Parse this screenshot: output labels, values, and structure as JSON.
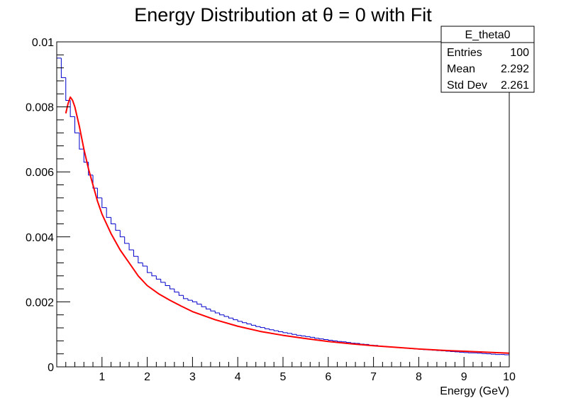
{
  "chart_data": {
    "type": "histogram",
    "title": "Energy Distribution at θ = 0 with Fit",
    "xlabel": "Energy (GeV)",
    "ylabel": "",
    "xlim": [
      0,
      10
    ],
    "ylim": [
      0,
      0.01
    ],
    "x_tick_labels": [
      "1",
      "2",
      "3",
      "4",
      "5",
      "6",
      "7",
      "8",
      "9",
      "10"
    ],
    "y_tick_labels": [
      "0",
      "0.002",
      "0.004",
      "0.006",
      "0.008",
      "0.01"
    ],
    "grid": false,
    "colors": {
      "histogram": "#0000cc",
      "fit": "#ff0000",
      "frame": "#000000"
    },
    "histogram": {
      "name": "E_theta0",
      "bin_width": 0.1,
      "bin_lefts": [
        0.0,
        0.1,
        0.2,
        0.3,
        0.4,
        0.5,
        0.6,
        0.7,
        0.8,
        0.9,
        1.0,
        1.1,
        1.2,
        1.3,
        1.4,
        1.5,
        1.6,
        1.7,
        1.8,
        1.9,
        2.0,
        2.1,
        2.2,
        2.3,
        2.4,
        2.5,
        2.6,
        2.7,
        2.8,
        2.9,
        3.0,
        3.1,
        3.2,
        3.3,
        3.4,
        3.5,
        3.6,
        3.7,
        3.8,
        3.9,
        4.0,
        4.1,
        4.2,
        4.3,
        4.4,
        4.5,
        4.6,
        4.7,
        4.8,
        4.9,
        5.0,
        5.1,
        5.2,
        5.3,
        5.4,
        5.5,
        5.6,
        5.7,
        5.8,
        5.9,
        6.0,
        6.1,
        6.2,
        6.3,
        6.4,
        6.5,
        6.6,
        6.7,
        6.8,
        6.9,
        7.0,
        7.1,
        7.2,
        7.3,
        7.4,
        7.5,
        7.6,
        7.7,
        7.8,
        7.9,
        8.0,
        8.1,
        8.2,
        8.3,
        8.4,
        8.5,
        8.6,
        8.7,
        8.8,
        8.9,
        9.0,
        9.1,
        9.2,
        9.3,
        9.4,
        9.5,
        9.6,
        9.7,
        9.8,
        9.9
      ],
      "values": [
        0.0095,
        0.0089,
        0.0082,
        0.0077,
        0.0072,
        0.0067,
        0.0063,
        0.0059,
        0.0055,
        0.0052,
        0.0049,
        0.0046,
        0.0044,
        0.0042,
        0.004,
        0.0038,
        0.0036,
        0.0034,
        0.0032,
        0.0031,
        0.0029,
        0.0028,
        0.0027,
        0.0026,
        0.0025,
        0.0024,
        0.0023,
        0.0022,
        0.0021,
        0.00205,
        0.002,
        0.00193,
        0.00185,
        0.00178,
        0.00172,
        0.00166,
        0.0016,
        0.00155,
        0.0015,
        0.00145,
        0.0014,
        0.00136,
        0.00132,
        0.00128,
        0.00124,
        0.00121,
        0.00117,
        0.00114,
        0.00111,
        0.00108,
        0.00105,
        0.00103,
        0.001,
        0.00097,
        0.00095,
        0.00093,
        0.00091,
        0.00088,
        0.00086,
        0.00084,
        0.00082,
        0.0008,
        0.00078,
        0.00077,
        0.00075,
        0.00073,
        0.00072,
        0.0007,
        0.00069,
        0.00067,
        0.00066,
        0.00064,
        0.00063,
        0.00062,
        0.0006,
        0.00059,
        0.00058,
        0.00057,
        0.00056,
        0.00055,
        0.00054,
        0.00053,
        0.00052,
        0.00051,
        0.0005,
        0.00049,
        0.00048,
        0.00047,
        0.00046,
        0.00045,
        0.00044,
        0.00043,
        0.00043,
        0.00042,
        0.00041,
        0.0004,
        0.00039,
        0.00038,
        0.00038,
        0.00037
      ]
    },
    "fit": {
      "x": [
        0.2,
        0.25,
        0.3,
        0.35,
        0.4,
        0.5,
        0.6,
        0.7,
        0.8,
        0.9,
        1.0,
        1.2,
        1.4,
        1.6,
        1.8,
        2.0,
        2.25,
        2.5,
        2.75,
        3.0,
        3.5,
        4.0,
        4.5,
        5.0,
        5.5,
        6.0,
        6.5,
        7.0,
        7.5,
        8.0,
        8.5,
        9.0,
        9.5,
        10.0
      ],
      "y": [
        0.0078,
        0.0081,
        0.0083,
        0.0082,
        0.008,
        0.0074,
        0.0067,
        0.0061,
        0.0056,
        0.0051,
        0.0047,
        0.0041,
        0.0036,
        0.0032,
        0.0028,
        0.0025,
        0.00225,
        0.00205,
        0.00187,
        0.0017,
        0.00145,
        0.00125,
        0.00109,
        0.00097,
        0.00087,
        0.00078,
        0.00071,
        0.00065,
        0.0006,
        0.00055,
        0.00051,
        0.00048,
        0.00045,
        0.00042
      ]
    },
    "stats_box": {
      "title": "E_theta0",
      "rows": [
        {
          "label": "Entries",
          "value": "100"
        },
        {
          "label": "Mean",
          "value": "2.292"
        },
        {
          "label": "Std Dev",
          "value": "2.261"
        }
      ]
    }
  }
}
